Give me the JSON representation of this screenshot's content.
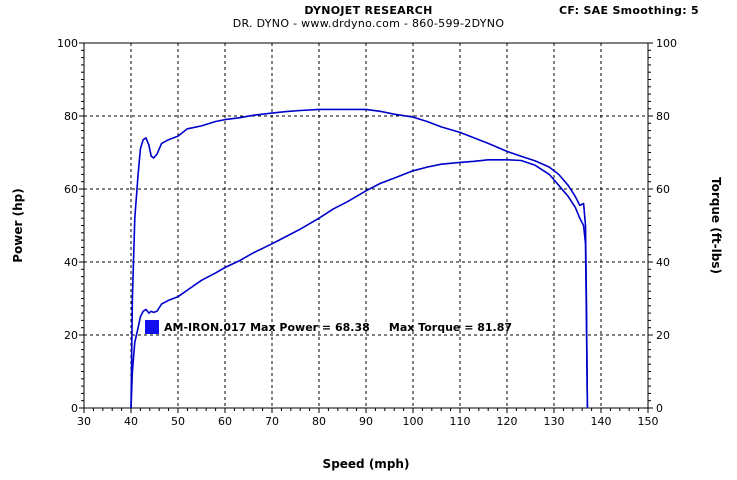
{
  "header": {
    "title": "DYNOJET RESEARCH",
    "subtitle": "DR. DYNO - www.drdyno.com - 860-599-2DYNO",
    "settings": "CF: SAE  Smoothing: 5"
  },
  "chart_data": {
    "type": "line",
    "xlabel": "Speed (mph)",
    "ylabel_left": "Power (hp)",
    "ylabel_right": "Torque (ft-lbs)",
    "xlim": [
      30,
      150
    ],
    "ylim": [
      0,
      100
    ],
    "x_ticks": [
      "30",
      "40",
      "50",
      "60",
      "70",
      "80",
      "90",
      "100",
      "110",
      "120",
      "130",
      "140",
      "150"
    ],
    "y_ticks": [
      "0",
      "20",
      "40",
      "60",
      "80",
      "100"
    ],
    "grid": true,
    "legend": {
      "label": "AM-IRON.017 Max Power = 68.38     Max Torque = 81.87",
      "color": "#1010ee"
    },
    "series": [
      {
        "name": "Power",
        "color": "#0000cc",
        "x": [
          40,
          40.3,
          40.8,
          41.5,
          42,
          42.6,
          43.2,
          43.8,
          44.3,
          44.8,
          45.5,
          46.5,
          48,
          50,
          52,
          55,
          58,
          60,
          63,
          66,
          70,
          73,
          76,
          80,
          83,
          86,
          90,
          93,
          96,
          100,
          103,
          106,
          110,
          113,
          116,
          120,
          123,
          126,
          129,
          131,
          133,
          134.5,
          135.5,
          136.3,
          136.7,
          136.9,
          137.1
        ],
        "y": [
          0,
          10,
          18,
          22,
          25,
          26.5,
          27,
          26,
          26.5,
          26.2,
          26.5,
          28.5,
          29.5,
          30.5,
          32.3,
          35,
          37,
          38.5,
          40.3,
          42.5,
          45,
          47,
          49,
          52,
          54.5,
          56.5,
          59.5,
          61.5,
          63,
          65,
          66,
          66.8,
          67.3,
          67.6,
          68,
          68,
          67.8,
          66.5,
          64,
          61,
          58,
          55,
          52,
          50,
          45,
          25,
          0
        ]
      },
      {
        "name": "Torque",
        "color": "#0000cc",
        "x": [
          40,
          40.3,
          40.8,
          41.5,
          42,
          42.6,
          43.2,
          43.8,
          44.3,
          44.8,
          45.5,
          46.5,
          48,
          50,
          52,
          55,
          58,
          60,
          63,
          66,
          70,
          73,
          76,
          80,
          83,
          86,
          90,
          93,
          96,
          100,
          103,
          106,
          110,
          113,
          116,
          120,
          123,
          126,
          129,
          131,
          133,
          134.5,
          135.5,
          136.3,
          136.7,
          136.9,
          137.1
        ],
        "y": [
          0,
          30,
          52,
          64,
          71,
          73.5,
          74,
          72,
          69,
          68.5,
          69.5,
          72.5,
          73.5,
          74.5,
          76.5,
          77.3,
          78.5,
          79,
          79.5,
          80.2,
          80.8,
          81.2,
          81.5,
          81.8,
          81.8,
          81.8,
          81.8,
          81.3,
          80.5,
          79.7,
          78.5,
          77,
          75.5,
          74,
          72.5,
          70.3,
          69,
          67.7,
          66,
          64,
          61,
          58,
          55.5,
          56,
          50,
          30,
          0
        ]
      }
    ]
  }
}
